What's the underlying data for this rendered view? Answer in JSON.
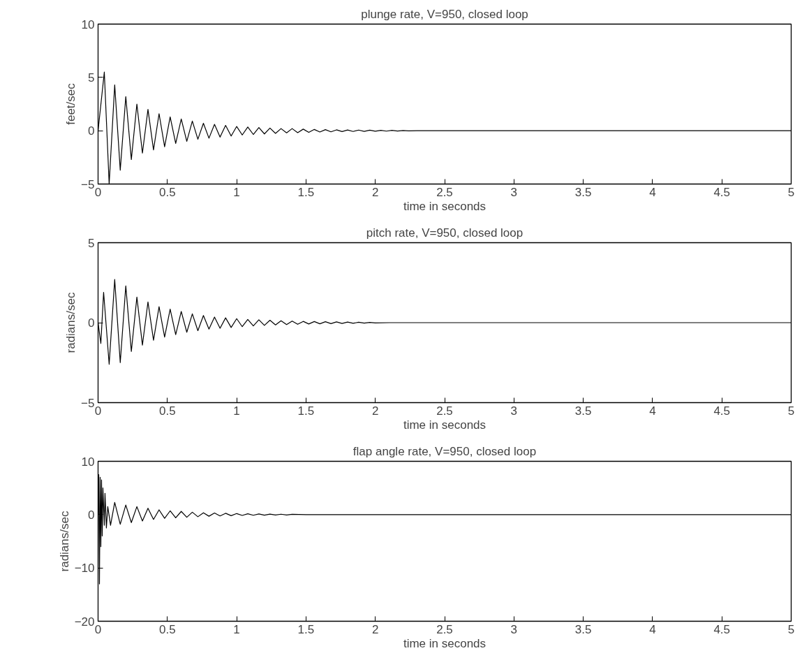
{
  "chart_data": [
    {
      "type": "line",
      "title": "plunge rate, V=950, closed loop",
      "xlabel": "time in seconds",
      "ylabel": "feet/sec",
      "grid": false,
      "xlim": [
        0,
        5
      ],
      "ylim": [
        -5,
        10
      ],
      "xticks": [
        0,
        0.5,
        1,
        1.5,
        2,
        2.5,
        3,
        3.5,
        4,
        4.5,
        5
      ],
      "yticks": [
        -5,
        0,
        5,
        10
      ],
      "x": [
        0,
        0.045,
        0.08,
        0.12,
        0.16,
        0.2,
        0.24,
        0.28,
        0.32,
        0.36,
        0.4,
        0.44,
        0.48,
        0.52,
        0.56,
        0.6,
        0.64,
        0.68,
        0.72,
        0.76,
        0.8,
        0.84,
        0.88,
        0.92,
        0.96,
        1.0,
        1.04,
        1.08,
        1.12,
        1.16,
        1.2,
        1.24,
        1.28,
        1.32,
        1.36,
        1.4,
        1.44,
        1.48,
        1.52,
        1.56,
        1.6,
        1.64,
        1.68,
        1.72,
        1.76,
        1.8,
        1.84,
        1.88,
        1.92,
        1.96,
        2.0,
        2.04,
        2.08,
        2.12,
        2.16,
        2.2,
        2.24,
        2.3,
        5
      ],
      "series": [
        {
          "color": "#000000",
          "values": [
            0,
            5.5,
            -5.0,
            4.3,
            -3.7,
            3.2,
            -2.7,
            2.5,
            -2.1,
            2.0,
            -1.8,
            1.6,
            -1.5,
            1.3,
            -1.2,
            1.1,
            -1.0,
            0.9,
            -0.8,
            0.7,
            -0.7,
            0.6,
            -0.6,
            0.5,
            -0.5,
            0.4,
            -0.4,
            0.35,
            -0.35,
            0.3,
            -0.3,
            0.25,
            -0.25,
            0.2,
            -0.2,
            0.2,
            -0.18,
            0.15,
            -0.15,
            0.12,
            -0.12,
            0.1,
            -0.1,
            0.08,
            -0.08,
            0.07,
            -0.07,
            0.06,
            -0.06,
            0.05,
            -0.05,
            0.04,
            -0.04,
            0.03,
            -0.03,
            0.02,
            -0.02,
            0,
            0
          ]
        }
      ]
    },
    {
      "type": "line",
      "title": "pitch rate, V=950, closed loop",
      "xlabel": "time in seconds",
      "ylabel": "radians/sec",
      "grid": false,
      "xlim": [
        0,
        5
      ],
      "ylim": [
        -5,
        5
      ],
      "xticks": [
        0,
        0.5,
        1,
        1.5,
        2,
        2.5,
        3,
        3.5,
        4,
        4.5,
        5
      ],
      "yticks": [
        -5,
        0,
        5
      ],
      "x": [
        0,
        0.02,
        0.04,
        0.08,
        0.12,
        0.16,
        0.2,
        0.24,
        0.28,
        0.32,
        0.36,
        0.4,
        0.44,
        0.48,
        0.52,
        0.56,
        0.6,
        0.64,
        0.68,
        0.72,
        0.76,
        0.8,
        0.84,
        0.88,
        0.92,
        0.96,
        1.0,
        1.04,
        1.08,
        1.12,
        1.16,
        1.2,
        1.24,
        1.28,
        1.32,
        1.36,
        1.4,
        1.44,
        1.48,
        1.52,
        1.56,
        1.6,
        1.64,
        1.68,
        1.72,
        1.76,
        1.8,
        1.84,
        1.88,
        1.92,
        1.96,
        2.0,
        2.1,
        5
      ],
      "series": [
        {
          "color": "#000000",
          "values": [
            0,
            -1.3,
            1.9,
            -2.6,
            2.7,
            -2.5,
            2.3,
            -1.8,
            1.6,
            -1.4,
            1.3,
            -1.1,
            1.0,
            -0.9,
            0.85,
            -0.75,
            0.7,
            -0.6,
            0.55,
            -0.5,
            0.45,
            -0.4,
            0.35,
            -0.35,
            0.3,
            -0.3,
            0.25,
            -0.25,
            0.2,
            -0.2,
            0.18,
            -0.17,
            0.15,
            -0.14,
            0.12,
            -0.12,
            0.1,
            -0.1,
            0.08,
            -0.08,
            0.07,
            -0.07,
            0.06,
            -0.06,
            0.05,
            -0.05,
            0.04,
            -0.04,
            0.03,
            -0.03,
            0.02,
            -0.02,
            0,
            0
          ]
        }
      ]
    },
    {
      "type": "line",
      "title": "flap angle rate, V=950, closed loop",
      "xlabel": "time in seconds",
      "ylabel": "radians/sec",
      "grid": false,
      "xlim": [
        0,
        5
      ],
      "ylim": [
        -20,
        10
      ],
      "xticks": [
        0,
        0.5,
        1,
        1.5,
        2,
        2.5,
        3,
        3.5,
        4,
        4.5,
        5
      ],
      "yticks": [
        -20,
        -10,
        0,
        10
      ],
      "x": [
        0,
        0.005,
        0.01,
        0.015,
        0.02,
        0.025,
        0.03,
        0.035,
        0.045,
        0.05,
        0.06,
        0.07,
        0.09,
        0.12,
        0.16,
        0.2,
        0.24,
        0.28,
        0.32,
        0.36,
        0.4,
        0.44,
        0.48,
        0.52,
        0.56,
        0.6,
        0.64,
        0.68,
        0.72,
        0.76,
        0.8,
        0.84,
        0.88,
        0.92,
        0.96,
        1.0,
        1.04,
        1.08,
        1.12,
        1.16,
        1.2,
        1.24,
        1.28,
        1.32,
        1.36,
        1.4,
        1.5,
        5
      ],
      "series": [
        {
          "color": "#000000",
          "values": [
            0,
            7.5,
            -13,
            7,
            -6,
            6.5,
            -4,
            5,
            -2,
            4,
            -2.5,
            1.5,
            -2,
            2.3,
            -1.8,
            1.8,
            -1.5,
            1.5,
            -1.2,
            1.2,
            -0.9,
            0.9,
            -0.7,
            0.7,
            -0.6,
            0.6,
            -0.5,
            0.45,
            -0.4,
            0.35,
            -0.3,
            0.3,
            -0.25,
            0.25,
            -0.2,
            0.2,
            -0.15,
            0.15,
            -0.12,
            0.12,
            -0.1,
            0.1,
            -0.08,
            0.08,
            -0.06,
            0.06,
            0,
            0
          ]
        }
      ]
    }
  ]
}
